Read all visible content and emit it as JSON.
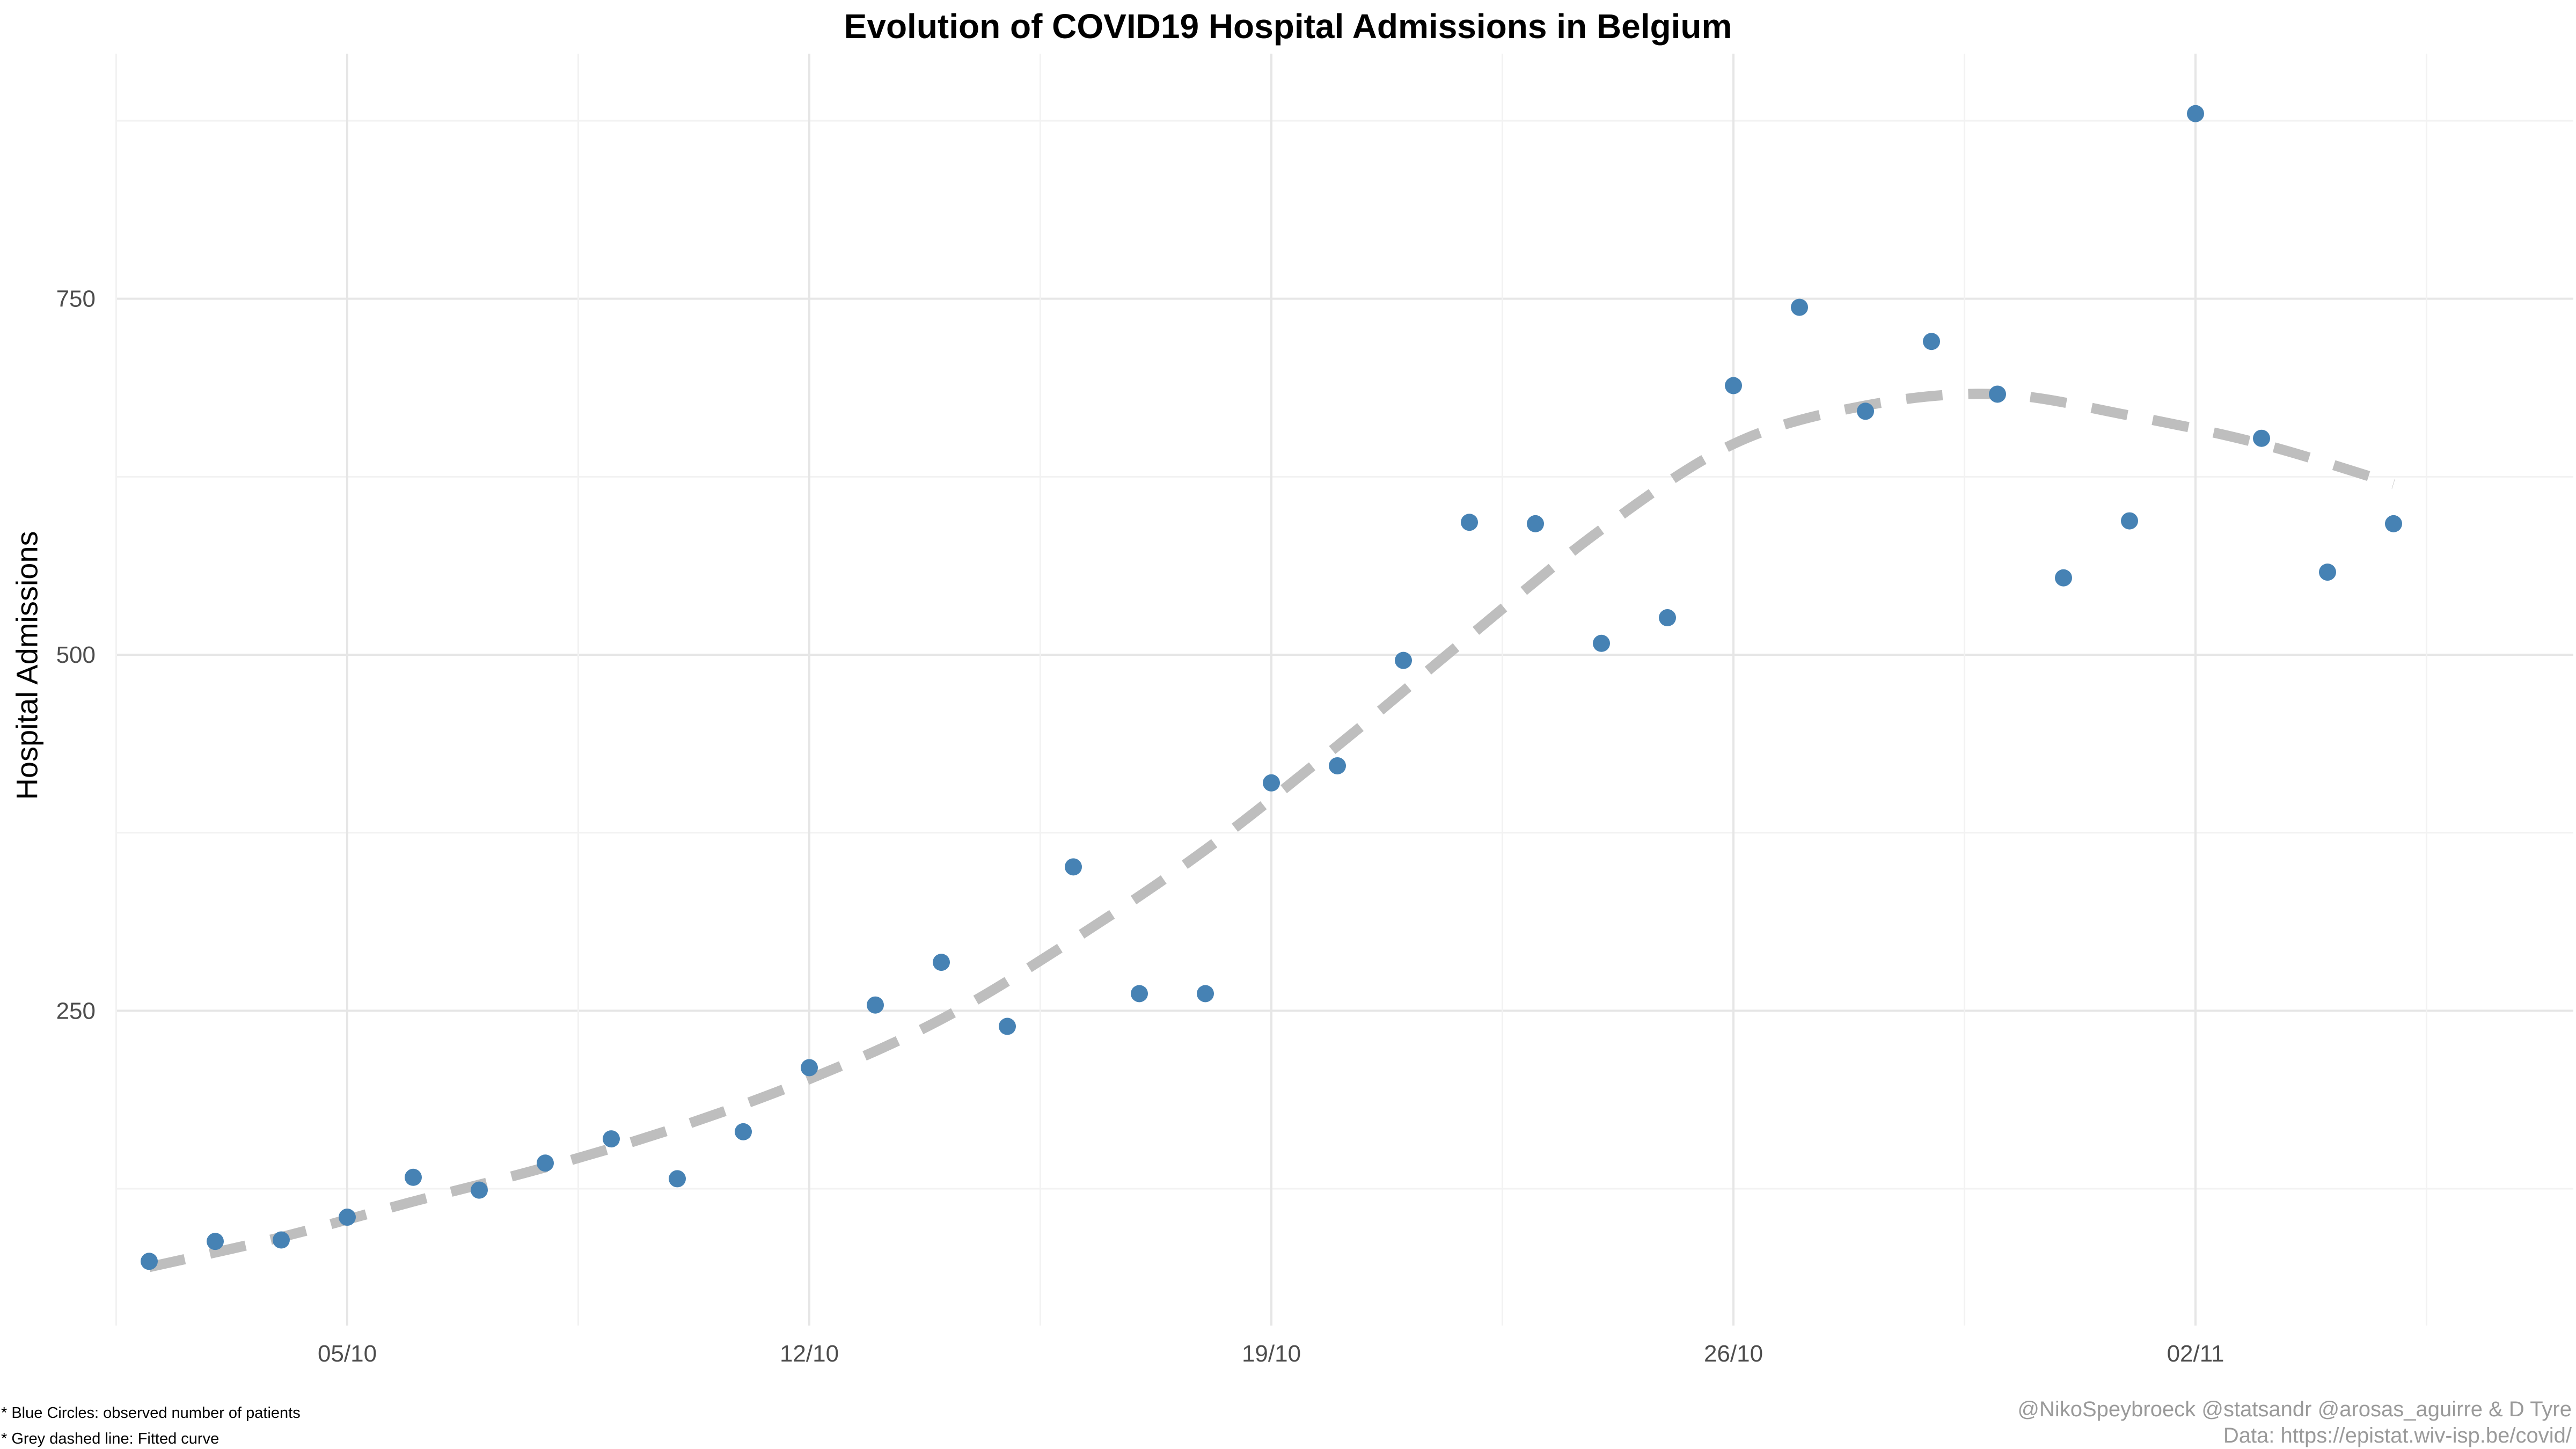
{
  "chart_data": {
    "type": "scatter",
    "title": "Evolution of COVID19 Hospital Admissions in Belgium",
    "xlabel": "",
    "ylabel": "Hospital Admissions",
    "x_tick_labels": [
      "05/10",
      "12/10",
      "19/10",
      "26/10",
      "02/11"
    ],
    "y_tick_labels": [
      "250",
      "500",
      "750"
    ],
    "ylim": [
      40,
      900
    ],
    "grid": true,
    "series": [
      {
        "name": "observed number of patients",
        "type": "scatter",
        "color": "#4682B4",
        "points": [
          {
            "x": "2020-10-02",
            "y": 74
          },
          {
            "x": "2020-10-03",
            "y": 88
          },
          {
            "x": "2020-10-04",
            "y": 89
          },
          {
            "x": "2020-10-05",
            "y": 105
          },
          {
            "x": "2020-10-06",
            "y": 133
          },
          {
            "x": "2020-10-07",
            "y": 124
          },
          {
            "x": "2020-10-08",
            "y": 143
          },
          {
            "x": "2020-10-09",
            "y": 160
          },
          {
            "x": "2020-10-10",
            "y": 132
          },
          {
            "x": "2020-10-11",
            "y": 165
          },
          {
            "x": "2020-10-12",
            "y": 210
          },
          {
            "x": "2020-10-13",
            "y": 254
          },
          {
            "x": "2020-10-14",
            "y": 284
          },
          {
            "x": "2020-10-15",
            "y": 239
          },
          {
            "x": "2020-10-16",
            "y": 351
          },
          {
            "x": "2020-10-17",
            "y": 262
          },
          {
            "x": "2020-10-18",
            "y": 262
          },
          {
            "x": "2020-10-19",
            "y": 410
          },
          {
            "x": "2020-10-20",
            "y": 422
          },
          {
            "x": "2020-10-21",
            "y": 496
          },
          {
            "x": "2020-10-22",
            "y": 593
          },
          {
            "x": "2020-10-23",
            "y": 592
          },
          {
            "x": "2020-10-24",
            "y": 508
          },
          {
            "x": "2020-10-25",
            "y": 526
          },
          {
            "x": "2020-10-26",
            "y": 689
          },
          {
            "x": "2020-10-27",
            "y": 744
          },
          {
            "x": "2020-10-28",
            "y": 671
          },
          {
            "x": "2020-10-29",
            "y": 720
          },
          {
            "x": "2020-10-30",
            "y": 683
          },
          {
            "x": "2020-10-31",
            "y": 554
          },
          {
            "x": "2020-11-01",
            "y": 594
          },
          {
            "x": "2020-11-02",
            "y": 880
          },
          {
            "x": "2020-11-03",
            "y": 652
          },
          {
            "x": "2020-11-04",
            "y": 558
          },
          {
            "x": "2020-11-05",
            "y": 592
          }
        ]
      },
      {
        "name": "Fitted curve",
        "type": "line",
        "style": "dashed",
        "color": "#BEBEBE",
        "points": [
          {
            "x": "2020-10-02",
            "y": 70
          },
          {
            "x": "2020-10-04",
            "y": 91
          },
          {
            "x": "2020-10-06",
            "y": 116
          },
          {
            "x": "2020-10-08",
            "y": 140
          },
          {
            "x": "2020-10-10",
            "y": 168
          },
          {
            "x": "2020-10-12",
            "y": 202
          },
          {
            "x": "2020-10-14",
            "y": 244
          },
          {
            "x": "2020-10-16",
            "y": 300
          },
          {
            "x": "2020-10-18",
            "y": 363
          },
          {
            "x": "2020-10-20",
            "y": 436
          },
          {
            "x": "2020-10-22",
            "y": 513
          },
          {
            "x": "2020-10-24",
            "y": 588
          },
          {
            "x": "2020-10-26",
            "y": 648
          },
          {
            "x": "2020-10-28",
            "y": 675
          },
          {
            "x": "2020-10-30",
            "y": 683
          },
          {
            "x": "2020-11-01",
            "y": 668
          },
          {
            "x": "2020-11-03",
            "y": 648
          },
          {
            "x": "2020-11-05",
            "y": 620
          }
        ]
      }
    ],
    "annotations": {
      "note1": "* Blue Circles: observed number of patients",
      "note2": "* Grey dashed line: Fitted curve",
      "credit1": "@NikoSpeybroeck @statsandr @arosas_aguirre & D Tyre",
      "credit2": "Data: https://epistat.wiv-isp.be/covid/"
    }
  }
}
